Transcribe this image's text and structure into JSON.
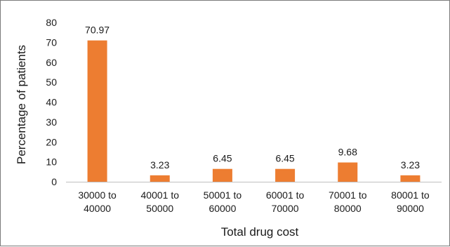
{
  "chart_data": {
    "type": "bar",
    "title": "",
    "xlabel": "Total drug cost",
    "ylabel": "Percentage of patients",
    "categories": [
      [
        "30000 to",
        "40000"
      ],
      [
        "40001 to",
        "50000"
      ],
      [
        "50001 to",
        "60000"
      ],
      [
        "60001 to",
        "70000"
      ],
      [
        "70001 to",
        "80000"
      ],
      [
        "80001 to",
        "90000"
      ]
    ],
    "values": [
      70.97,
      3.23,
      6.45,
      6.45,
      9.68,
      3.23
    ],
    "value_labels": [
      "70.97",
      "3.23",
      "6.45",
      "6.45",
      "9.68",
      "3.23"
    ],
    "ylim": [
      0,
      80
    ],
    "yticks": [
      "0",
      "10",
      "20",
      "30",
      "40",
      "50",
      "60",
      "70",
      "80"
    ],
    "grid": false,
    "legend": "none",
    "bar_color": "#ED7D31"
  }
}
